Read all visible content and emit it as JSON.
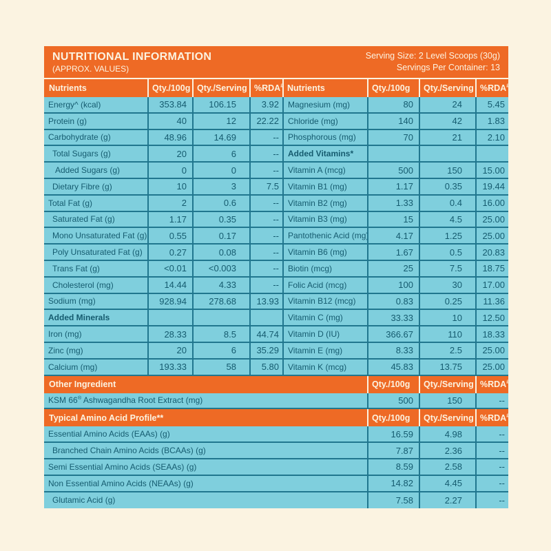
{
  "colors": {
    "background": "#FBF3E1",
    "orange": "#EE6A25",
    "cell_blue": "#7FCFDD",
    "border_teal": "#20768E",
    "text_teal": "#155B6F",
    "header_text": "#FCF3E1"
  },
  "header": {
    "title": "NUTRITIONAL INFORMATION",
    "subtitle": "(APPROX. VALUES)",
    "serving_size": "Serving Size: 2 Level Scoops (30g)",
    "servings_per_container": "Servings Per Container: 13"
  },
  "columns": {
    "nutrients": "Nutrients",
    "qty_100g": "Qty./100g",
    "qty_serving": "Qty./Serving",
    "rda": "%RDA",
    "rda_sup": "#"
  },
  "main": {
    "left": [
      {
        "label": "Energy^ (kcal)",
        "q100": "353.84",
        "qsrv": "106.15",
        "rda": "3.92"
      },
      {
        "label": "Protein (g)",
        "q100": "40",
        "qsrv": "12",
        "rda": "22.22"
      },
      {
        "label": "Carbohydrate (g)",
        "q100": "48.96",
        "qsrv": "14.69",
        "rda": "--"
      },
      {
        "label": "Total Sugars (g)",
        "indent": 1,
        "q100": "20",
        "qsrv": "6",
        "rda": "--"
      },
      {
        "label": "Added Sugars (g)",
        "indent": 2,
        "q100": "0",
        "qsrv": "0",
        "rda": "--"
      },
      {
        "label": "Dietary Fibre (g)",
        "indent": 1,
        "q100": "10",
        "qsrv": "3",
        "rda": "7.5"
      },
      {
        "label": "Total Fat (g)",
        "q100": "2",
        "qsrv": "0.6",
        "rda": "--"
      },
      {
        "label": "Saturated Fat (g)",
        "indent": 1,
        "q100": "1.17",
        "qsrv": "0.35",
        "rda": "--"
      },
      {
        "label": "Mono Unsaturated Fat (g)",
        "indent": 1,
        "q100": "0.55",
        "qsrv": "0.17",
        "rda": "--"
      },
      {
        "label": "Poly Unsaturated Fat (g)",
        "indent": 1,
        "q100": "0.27",
        "qsrv": "0.08",
        "rda": "--"
      },
      {
        "label": "Trans Fat (g)",
        "indent": 1,
        "q100": "<0.01",
        "qsrv": "<0.003",
        "rda": "--"
      },
      {
        "label": "Cholesterol (mg)",
        "indent": 1,
        "q100": "14.44",
        "qsrv": "4.33",
        "rda": "--"
      },
      {
        "label": "Sodium (mg)",
        "q100": "928.94",
        "qsrv": "278.68",
        "rda": "13.93"
      },
      {
        "label": "Added Minerals",
        "bold": true,
        "q100": "",
        "qsrv": "",
        "rda": ""
      },
      {
        "label": "Iron (mg)",
        "q100": "28.33",
        "qsrv": "8.5",
        "rda": "44.74"
      },
      {
        "label": "Zinc (mg)",
        "q100": "20",
        "qsrv": "6",
        "rda": "35.29"
      },
      {
        "label": "Calcium (mg)",
        "q100": "193.33",
        "qsrv": "58",
        "rda": "5.80"
      }
    ],
    "right": [
      {
        "label": "Magnesium (mg)",
        "q100": "80",
        "qsrv": "24",
        "rda": "5.45"
      },
      {
        "label": "Chloride (mg)",
        "q100": "140",
        "qsrv": "42",
        "rda": "1.83"
      },
      {
        "label": "Phosphorous (mg)",
        "q100": "70",
        "qsrv": "21",
        "rda": "2.10"
      },
      {
        "label": "Added Vitamins*",
        "bold": true,
        "q100": "",
        "qsrv": "",
        "rda": ""
      },
      {
        "label": "Vitamin A (mcg)",
        "q100": "500",
        "qsrv": "150",
        "rda": "15.00"
      },
      {
        "label": "Vitamin B1 (mg)",
        "q100": "1.17",
        "qsrv": "0.35",
        "rda": "19.44"
      },
      {
        "label": "Vitamin B2 (mg)",
        "q100": "1.33",
        "qsrv": "0.4",
        "rda": "16.00"
      },
      {
        "label": "Vitamin B3 (mg)",
        "q100": "15",
        "qsrv": "4.5",
        "rda": "25.00"
      },
      {
        "label": "Pantothenic Acid (mg)",
        "q100": "4.17",
        "qsrv": "1.25",
        "rda": "25.00"
      },
      {
        "label": "Vitamin B6 (mg)",
        "q100": "1.67",
        "qsrv": "0.5",
        "rda": "20.83"
      },
      {
        "label": "Biotin (mcg)",
        "q100": "25",
        "qsrv": "7.5",
        "rda": "18.75"
      },
      {
        "label": "Folic Acid (mcg)",
        "q100": "100",
        "qsrv": "30",
        "rda": "17.00"
      },
      {
        "label": "Vitamin B12 (mcg)",
        "q100": "0.83",
        "qsrv": "0.25",
        "rda": "11.36"
      },
      {
        "label": "Vitamin C (mg)",
        "q100": "33.33",
        "qsrv": "10",
        "rda": "12.50"
      },
      {
        "label": "Vitamin D (IU)",
        "q100": "366.67",
        "qsrv": "110",
        "rda": "18.33"
      },
      {
        "label": "Vitamin E (mg)",
        "q100": "8.33",
        "qsrv": "2.5",
        "rda": "25.00"
      },
      {
        "label": "Vitamin K (mcg)",
        "q100": "45.83",
        "qsrv": "13.75",
        "rda": "25.00"
      }
    ]
  },
  "sections": {
    "other": {
      "title": "Other Ingredient",
      "rows": [
        {
          "label": "KSM 66",
          "label_sup": "®",
          "label_rest": " Ashwagandha Root Extract (mg)",
          "q100": "500",
          "qsrv": "150",
          "rda": "--"
        }
      ]
    },
    "amino": {
      "title": "Typical Amino Acid Profile**",
      "rows": [
        {
          "label": "Essential Amino Acids (EAAs) (g)",
          "q100": "16.59",
          "qsrv": "4.98",
          "rda": "--"
        },
        {
          "label": "Branched Chain Amino Acids (BCAAs) (g)",
          "indent": 1,
          "q100": "7.87",
          "qsrv": "2.36",
          "rda": "--"
        },
        {
          "label": "Semi Essential Amino Acids (SEAAs) (g)",
          "q100": "8.59",
          "qsrv": "2.58",
          "rda": "--"
        },
        {
          "label": "Non Essential Amino Acids (NEAAs) (g)",
          "q100": "14.82",
          "qsrv": "4.45",
          "rda": "--"
        },
        {
          "label": "Glutamic Acid (g)",
          "indent": 1,
          "q100": "7.58",
          "qsrv": "2.27",
          "rda": "--"
        }
      ]
    }
  }
}
